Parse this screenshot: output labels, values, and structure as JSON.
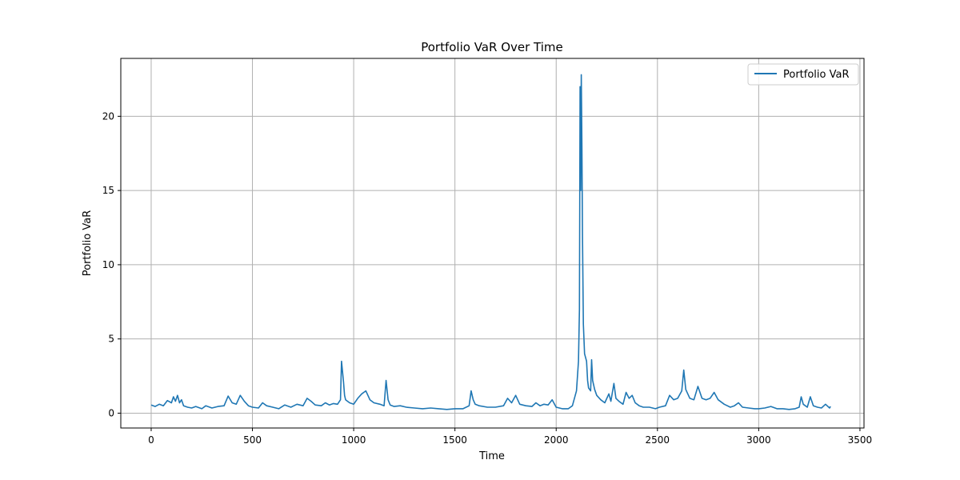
{
  "chart_data": {
    "type": "line",
    "title": "Portfolio VaR Over Time",
    "xlabel": "Time",
    "ylabel": "Portfolio VaR",
    "xlim": [
      -150,
      3520
    ],
    "ylim": [
      -1.0,
      23.9
    ],
    "xticks": [
      0,
      500,
      1000,
      1500,
      2000,
      2500,
      3000,
      3500
    ],
    "yticks": [
      0,
      5,
      10,
      15,
      20
    ],
    "grid": true,
    "legend_position": "top-right",
    "series": [
      {
        "name": "Portfolio VaR",
        "color": "#1f77b4",
        "points": [
          [
            0,
            0.55
          ],
          [
            20,
            0.45
          ],
          [
            40,
            0.6
          ],
          [
            60,
            0.5
          ],
          [
            80,
            0.85
          ],
          [
            100,
            0.7
          ],
          [
            110,
            1.1
          ],
          [
            120,
            0.8
          ],
          [
            130,
            1.2
          ],
          [
            140,
            0.7
          ],
          [
            150,
            0.9
          ],
          [
            160,
            0.5
          ],
          [
            180,
            0.4
          ],
          [
            200,
            0.35
          ],
          [
            220,
            0.45
          ],
          [
            250,
            0.3
          ],
          [
            270,
            0.5
          ],
          [
            300,
            0.35
          ],
          [
            330,
            0.45
          ],
          [
            360,
            0.5
          ],
          [
            380,
            1.15
          ],
          [
            400,
            0.7
          ],
          [
            420,
            0.6
          ],
          [
            440,
            1.2
          ],
          [
            460,
            0.8
          ],
          [
            480,
            0.5
          ],
          [
            500,
            0.4
          ],
          [
            530,
            0.35
          ],
          [
            550,
            0.7
          ],
          [
            570,
            0.5
          ],
          [
            600,
            0.4
          ],
          [
            630,
            0.3
          ],
          [
            660,
            0.55
          ],
          [
            690,
            0.4
          ],
          [
            720,
            0.6
          ],
          [
            750,
            0.5
          ],
          [
            770,
            1.0
          ],
          [
            790,
            0.8
          ],
          [
            810,
            0.55
          ],
          [
            840,
            0.5
          ],
          [
            860,
            0.7
          ],
          [
            880,
            0.55
          ],
          [
            900,
            0.65
          ],
          [
            920,
            0.6
          ],
          [
            935,
            0.9
          ],
          [
            940,
            3.5
          ],
          [
            950,
            2.1
          ],
          [
            955,
            1.2
          ],
          [
            960,
            0.9
          ],
          [
            980,
            0.7
          ],
          [
            1000,
            0.6
          ],
          [
            1020,
            1.0
          ],
          [
            1040,
            1.3
          ],
          [
            1060,
            1.5
          ],
          [
            1080,
            0.9
          ],
          [
            1100,
            0.7
          ],
          [
            1130,
            0.6
          ],
          [
            1150,
            0.5
          ],
          [
            1160,
            2.2
          ],
          [
            1170,
            0.9
          ],
          [
            1180,
            0.55
          ],
          [
            1200,
            0.45
          ],
          [
            1230,
            0.5
          ],
          [
            1260,
            0.4
          ],
          [
            1300,
            0.35
          ],
          [
            1340,
            0.3
          ],
          [
            1380,
            0.35
          ],
          [
            1420,
            0.3
          ],
          [
            1460,
            0.25
          ],
          [
            1500,
            0.3
          ],
          [
            1540,
            0.3
          ],
          [
            1570,
            0.5
          ],
          [
            1580,
            1.5
          ],
          [
            1590,
            0.9
          ],
          [
            1600,
            0.6
          ],
          [
            1620,
            0.5
          ],
          [
            1660,
            0.4
          ],
          [
            1700,
            0.4
          ],
          [
            1740,
            0.5
          ],
          [
            1760,
            1.0
          ],
          [
            1780,
            0.7
          ],
          [
            1800,
            1.2
          ],
          [
            1820,
            0.6
          ],
          [
            1850,
            0.5
          ],
          [
            1880,
            0.45
          ],
          [
            1900,
            0.7
          ],
          [
            1920,
            0.5
          ],
          [
            1940,
            0.6
          ],
          [
            1960,
            0.55
          ],
          [
            1980,
            0.9
          ],
          [
            2000,
            0.4
          ],
          [
            2030,
            0.3
          ],
          [
            2060,
            0.3
          ],
          [
            2080,
            0.5
          ],
          [
            2100,
            1.5
          ],
          [
            2110,
            3.5
          ],
          [
            2115,
            7.0
          ],
          [
            2118,
            22.0
          ],
          [
            2121,
            15.0
          ],
          [
            2124,
            22.8
          ],
          [
            2127,
            18.0
          ],
          [
            2130,
            12.0
          ],
          [
            2134,
            6.0
          ],
          [
            2140,
            4.0
          ],
          [
            2150,
            3.5
          ],
          [
            2155,
            2.2
          ],
          [
            2160,
            1.7
          ],
          [
            2170,
            1.5
          ],
          [
            2175,
            3.6
          ],
          [
            2180,
            2.2
          ],
          [
            2190,
            1.6
          ],
          [
            2200,
            1.2
          ],
          [
            2220,
            0.9
          ],
          [
            2240,
            0.7
          ],
          [
            2260,
            1.3
          ],
          [
            2270,
            0.8
          ],
          [
            2285,
            2.0
          ],
          [
            2295,
            1.0
          ],
          [
            2310,
            0.8
          ],
          [
            2330,
            0.6
          ],
          [
            2345,
            1.4
          ],
          [
            2360,
            1.0
          ],
          [
            2375,
            1.2
          ],
          [
            2390,
            0.7
          ],
          [
            2410,
            0.5
          ],
          [
            2430,
            0.4
          ],
          [
            2460,
            0.4
          ],
          [
            2490,
            0.3
          ],
          [
            2510,
            0.4
          ],
          [
            2540,
            0.5
          ],
          [
            2560,
            1.2
          ],
          [
            2580,
            0.9
          ],
          [
            2600,
            1.0
          ],
          [
            2620,
            1.5
          ],
          [
            2630,
            2.9
          ],
          [
            2640,
            1.6
          ],
          [
            2660,
            1.0
          ],
          [
            2680,
            0.9
          ],
          [
            2700,
            1.8
          ],
          [
            2720,
            1.0
          ],
          [
            2740,
            0.9
          ],
          [
            2760,
            1.0
          ],
          [
            2780,
            1.4
          ],
          [
            2800,
            0.9
          ],
          [
            2830,
            0.6
          ],
          [
            2860,
            0.4
          ],
          [
            2880,
            0.5
          ],
          [
            2900,
            0.7
          ],
          [
            2920,
            0.4
          ],
          [
            2950,
            0.35
          ],
          [
            2980,
            0.3
          ],
          [
            3000,
            0.3
          ],
          [
            3030,
            0.35
          ],
          [
            3060,
            0.45
          ],
          [
            3090,
            0.3
          ],
          [
            3120,
            0.3
          ],
          [
            3150,
            0.25
          ],
          [
            3180,
            0.3
          ],
          [
            3200,
            0.4
          ],
          [
            3210,
            1.1
          ],
          [
            3220,
            0.6
          ],
          [
            3240,
            0.4
          ],
          [
            3255,
            1.1
          ],
          [
            3270,
            0.5
          ],
          [
            3290,
            0.4
          ],
          [
            3310,
            0.35
          ],
          [
            3330,
            0.6
          ],
          [
            3350,
            0.35
          ],
          [
            3355,
            0.45
          ]
        ]
      }
    ]
  }
}
